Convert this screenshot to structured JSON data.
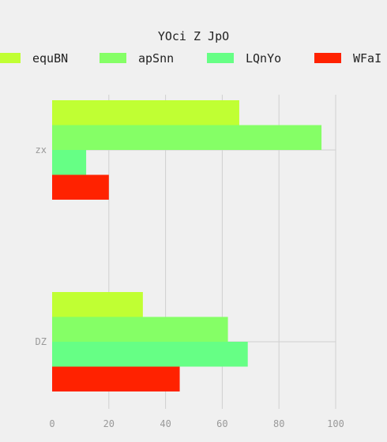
{
  "chart_data": {
    "type": "bar",
    "orientation": "horizontal",
    "title": "YOci  Z JpO",
    "categories": [
      "zx",
      "DZ"
    ],
    "series": [
      {
        "name": "equBN",
        "color": "#c0ff33",
        "values": [
          66,
          32
        ]
      },
      {
        "name": "apSnn",
        "color": "#85ff66",
        "values": [
          95,
          62
        ]
      },
      {
        "name": "LQnYo",
        "color": "#66ff85",
        "values": [
          12,
          69
        ]
      },
      {
        "name": "WFaI",
        "color": "#ff2200",
        "values": [
          20,
          45
        ]
      }
    ],
    "xlim": [
      0,
      100
    ],
    "xticks": [
      0,
      20,
      40,
      60,
      80,
      100
    ],
    "grid": true,
    "legend_position": "top"
  }
}
